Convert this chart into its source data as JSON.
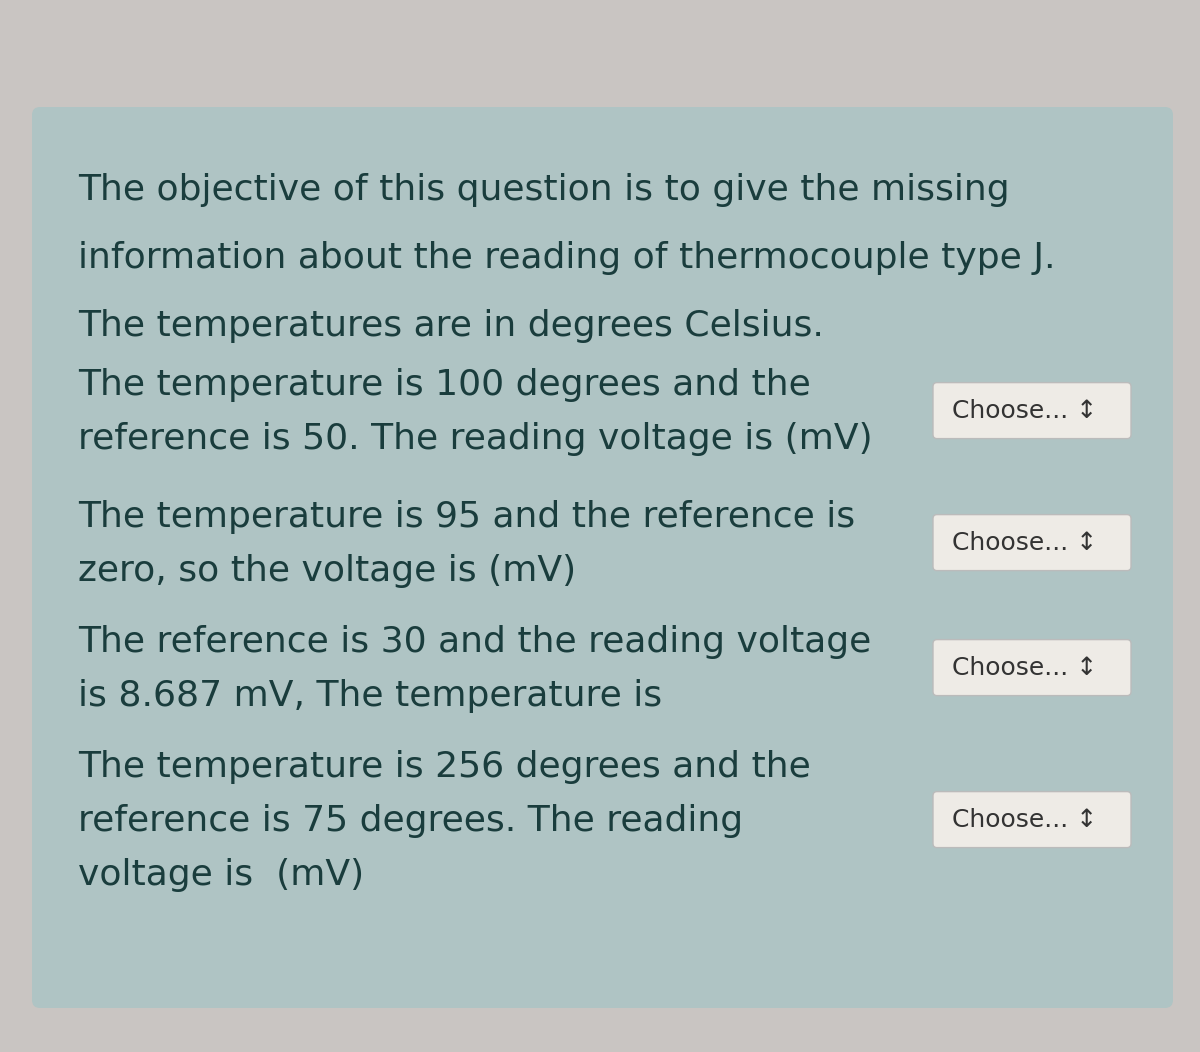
{
  "bg_outer": "#c9c5c2",
  "bg_card": "#afc4c4",
  "text_color": "#1a3d3d",
  "button_bg": "#eeebe6",
  "button_border": "#bbbbbb",
  "button_text": "#333333",
  "header_text": [
    "The objective of this question is to give the missing",
    "information about the reading of thermocouple type J.",
    "The temperatures are in degrees Celsius."
  ],
  "questions": [
    {
      "lines": [
        "The temperature is 100 degrees and the",
        "reference is 50. The reading voltage is (mV)"
      ],
      "button_label": "Choose...  ◄►"
    },
    {
      "lines": [
        "The temperature is 95 and the reference is",
        "zero, so the voltage is (mV)"
      ],
      "button_label": "Choose...  ◄►"
    },
    {
      "lines": [
        "The reference is 30 and the reading voltage",
        "is 8.687 mV, The temperature is"
      ],
      "button_label": "Choose...  ◄►"
    },
    {
      "lines": [
        "The temperature is 256 degrees and the",
        "reference is 75 degrees. The reading",
        "voltage is  (mV)"
      ],
      "button_label": "Choose...  ◄►"
    }
  ],
  "figsize": [
    12.0,
    10.52
  ],
  "dpi": 100
}
